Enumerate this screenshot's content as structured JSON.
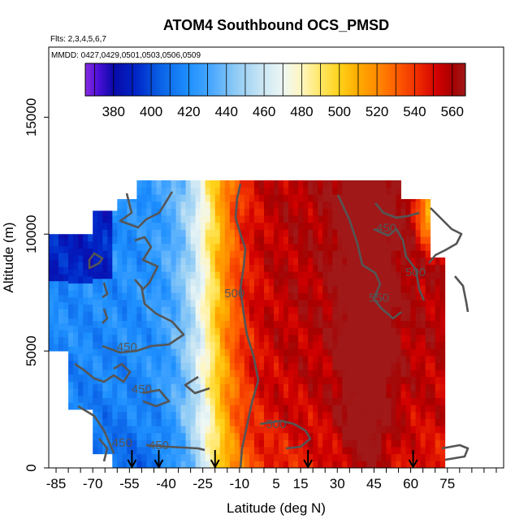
{
  "chart_data": {
    "type": "heatmap",
    "title": "ATOM4 Southbound OCS_PMSD",
    "subtitle_flights": "Flts: 2,3,4,5,6,7",
    "subtitle_dates": "MMDD: 0427,0429,0501,0503,0506,0509",
    "xlabel": "Latitude (deg N)",
    "ylabel": "Altitude (m)",
    "xlim": [
      -88,
      98
    ],
    "ylim": [
      0,
      18000
    ],
    "x_ticks": [
      -85,
      -70,
      -55,
      -40,
      -25,
      -10,
      5,
      15,
      30,
      45,
      60,
      75
    ],
    "y_ticks": [
      0,
      5000,
      10000,
      15000
    ],
    "colorbar": {
      "min": 365,
      "max": 567,
      "ticks": [
        380,
        400,
        420,
        440,
        460,
        480,
        500,
        520,
        540,
        560
      ],
      "stops": [
        {
          "value": 365,
          "color": "#8a2be2"
        },
        {
          "value": 372,
          "color": "#4b0fd6"
        },
        {
          "value": 380,
          "color": "#0a0aa8"
        },
        {
          "value": 392,
          "color": "#0026c8"
        },
        {
          "value": 405,
          "color": "#0a62e6"
        },
        {
          "value": 420,
          "color": "#1e90ff"
        },
        {
          "value": 432,
          "color": "#4aa8ff"
        },
        {
          "value": 445,
          "color": "#8fcbf5"
        },
        {
          "value": 458,
          "color": "#c6e4f4"
        },
        {
          "value": 470,
          "color": "#eef7f4"
        },
        {
          "value": 480,
          "color": "#fff6c0"
        },
        {
          "value": 490,
          "color": "#ffe766"
        },
        {
          "value": 500,
          "color": "#ffd21a"
        },
        {
          "value": 510,
          "color": "#ffab00"
        },
        {
          "value": 520,
          "color": "#ff8a00"
        },
        {
          "value": 530,
          "color": "#ff6000"
        },
        {
          "value": 542,
          "color": "#ee2a00"
        },
        {
          "value": 552,
          "color": "#d10000"
        },
        {
          "value": 560,
          "color": "#a80000"
        },
        {
          "value": 567,
          "color": "#a01818"
        }
      ]
    },
    "contour_labels": [
      {
        "text": "450",
        "lat": 50,
        "alt": 10100
      },
      {
        "text": "500",
        "lat": 62,
        "alt": 8200
      },
      {
        "text": "550",
        "lat": 47,
        "alt": 7100
      },
      {
        "text": "500",
        "lat": -12,
        "alt": 7300
      },
      {
        "text": "450",
        "lat": -56,
        "alt": 5000
      },
      {
        "text": "450",
        "lat": -50,
        "alt": 3200
      },
      {
        "text": "500",
        "lat": 5,
        "alt": 1700
      },
      {
        "text": "450",
        "lat": -43,
        "alt": 800
      },
      {
        "text": "450",
        "lat": -58,
        "alt": 900
      }
    ],
    "arrows_lat": [
      -54,
      -43,
      -20,
      18,
      61
    ]
  }
}
